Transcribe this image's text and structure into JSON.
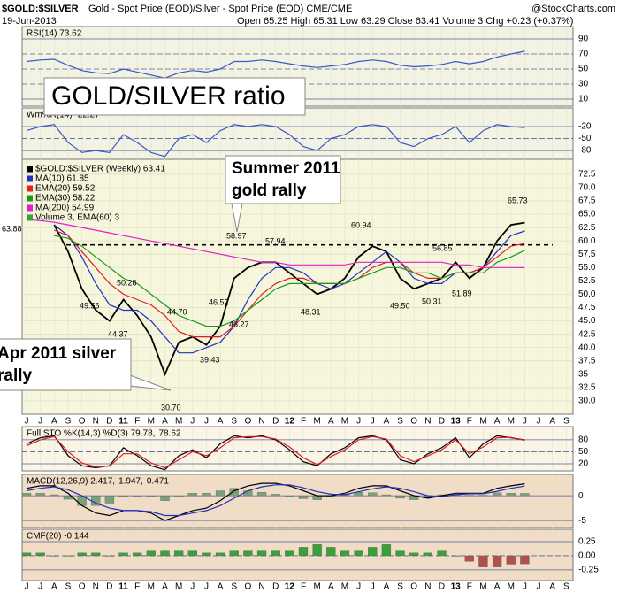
{
  "header": {
    "symbol": "$GOLD:$SILVER",
    "description": "Gold - Spot Price (EOD)/Silver - Spot Price (EOD)  CME/CME",
    "brand": "@StockCharts.com",
    "date": "19-Jun-2013",
    "quote": "Open 65.25  High 65.31  Low 63.29  Close 63.41  Volume 3  Chg +0.23 (+0.37%)"
  },
  "annotations": {
    "main": "GOLD/SILVER ratio",
    "summer": [
      "Summer 2011",
      "gold rally"
    ],
    "april": [
      "Apr 2011 silver",
      "rally"
    ]
  },
  "chart_data": [
    {
      "type": "line",
      "ylim": [
        0.6,
        106.5
      ],
      "yticks": [
        90,
        70,
        50,
        30,
        10
      ],
      "series": [
        {
          "name": "RSI(14) 73.62",
          "color": "#3a55c8",
          "values": [
            60,
            62,
            63,
            55,
            48,
            45,
            44,
            50,
            46,
            42,
            38,
            45,
            48,
            46,
            50,
            60,
            60,
            62,
            60,
            57,
            54,
            52,
            54,
            56,
            60,
            62,
            60,
            55,
            53,
            54,
            56,
            60,
            57,
            60,
            66,
            70,
            73.62,
            null,
            null,
            null
          ]
        }
      ]
    },
    {
      "type": "line",
      "ylim": [
        -102,
        26.7
      ],
      "yticks": [
        -20,
        -50,
        -80
      ],
      "series": [
        {
          "name": "Wm%R(14) -22.27",
          "color": "#3a55c8",
          "values": [
            -30,
            -20,
            -15,
            -60,
            -85,
            -80,
            -85,
            -40,
            -60,
            -85,
            -95,
            -50,
            -40,
            -60,
            -30,
            -15,
            -20,
            -15,
            -20,
            -40,
            -70,
            -80,
            -50,
            -40,
            -20,
            -15,
            -20,
            -60,
            -70,
            -50,
            -40,
            -20,
            -60,
            -30,
            -15,
            -20,
            -22.27,
            null,
            null,
            null
          ]
        }
      ]
    },
    {
      "type": "line",
      "categories": [
        "J",
        "J",
        "A",
        "S",
        "O",
        "N",
        "D",
        "11",
        "F",
        "M",
        "A",
        "M",
        "J",
        "J",
        "A",
        "S",
        "O",
        "N",
        "D",
        "12",
        "F",
        "M",
        "A",
        "M",
        "J",
        "J",
        "A",
        "S",
        "O",
        "N",
        "D",
        "13",
        "F",
        "M",
        "A",
        "M",
        "J",
        "J",
        "A",
        "S"
      ],
      "ylim": [
        27.5,
        75.3
      ],
      "yticks": [
        {
          "value": 30,
          "label": "30.0"
        },
        32.5,
        35,
        37.5,
        {
          "value": 40,
          "label": "40.0"
        },
        42.5,
        {
          "value": 45,
          "label": "45.0"
        },
        47.5,
        {
          "value": 50,
          "label": "50.0"
        },
        52.5,
        {
          "value": 55,
          "label": "55.0"
        },
        57.5,
        {
          "value": 60,
          "label": "60.0"
        },
        62.5,
        {
          "value": 65,
          "label": "65.0"
        },
        67.5,
        {
          "value": 70,
          "label": "70.0"
        },
        72.5
      ],
      "hline": 59.25,
      "series": [
        {
          "name": "$GOLD:$SILVER (Weekly) 63.41",
          "color": "#000000",
          "values": [
            null,
            null,
            63,
            58,
            51,
            47,
            45,
            49,
            46,
            42,
            35,
            41,
            42,
            40.5,
            44,
            53,
            55,
            56,
            56,
            54,
            52,
            50,
            51,
            53,
            57,
            59,
            58,
            53,
            51,
            52,
            53,
            56,
            53,
            55,
            60,
            63,
            63.41,
            null,
            null,
            null
          ]
        },
        {
          "name": "MA(10) 61.85",
          "color": "#2030c0",
          "values": [
            null,
            null,
            63,
            61,
            57,
            52,
            48,
            47,
            47,
            45,
            42,
            39,
            39,
            40,
            41,
            44,
            49,
            53,
            55,
            55,
            54,
            52,
            51,
            52,
            54,
            56,
            58,
            56,
            53,
            52,
            52,
            54,
            54,
            55,
            58,
            61,
            61.85,
            null,
            null,
            null
          ]
        },
        {
          "name": "EMA(20) 59.52",
          "color": "#e02020",
          "values": [
            null,
            null,
            62,
            61,
            58,
            55,
            52,
            50,
            49,
            48,
            46,
            43,
            42,
            42,
            42,
            44,
            47,
            50,
            52,
            53,
            53,
            52,
            52,
            52,
            53,
            55,
            56,
            56,
            54,
            53,
            53,
            54,
            54,
            55,
            57,
            59,
            59.52,
            null,
            null,
            null
          ]
        },
        {
          "name": "EMA(30) 58.22",
          "color": "#1a9a1a",
          "values": [
            null,
            null,
            61,
            60.5,
            59,
            57,
            55,
            53,
            52,
            50,
            48,
            46,
            45,
            44,
            44,
            45,
            47,
            49,
            51,
            52,
            52,
            52,
            52,
            52,
            53,
            54,
            55,
            55,
            54,
            54,
            53,
            54,
            54,
            54,
            56,
            57,
            58.22,
            null,
            null,
            null
          ]
        },
        {
          "name": "MA(200) 54.99",
          "color": "#e020c8",
          "values": [
            64,
            63.8,
            63.5,
            63,
            62.5,
            62,
            61.5,
            61,
            60.5,
            60,
            59.5,
            59,
            58.5,
            58,
            57.5,
            57,
            56.5,
            56,
            56,
            55.5,
            55.5,
            55.5,
            55.5,
            55.5,
            56,
            56,
            56,
            56,
            56,
            56,
            56,
            55.5,
            55.5,
            55,
            55,
            55,
            54.99,
            null,
            null,
            null
          ]
        }
      ],
      "volume_legend": "Volume 3, EMA(60) 3",
      "point_labels": [
        63.88,
        58.97,
        57.94,
        60.94,
        56.85,
        65.73,
        50.28,
        49.56,
        44.37,
        {
          "value": 44.7,
          "label": "44.70"
        },
        46.52,
        46.27,
        39.43,
        {
          "value": 30.7,
          "label": "30.70"
        },
        48.31,
        {
          "value": 49.5,
          "label": "49.50"
        },
        50.31,
        51.89
      ]
    },
    {
      "type": "line",
      "ylim": [
        2.2,
        113
      ],
      "yticks": [
        80,
        50,
        20
      ],
      "series": [
        {
          "name": "Full STO %K(14,3) %D(3) 79.78,",
          "color": "#000000",
          "values": [
            70,
            85,
            90,
            40,
            15,
            10,
            15,
            60,
            40,
            15,
            5,
            40,
            55,
            35,
            70,
            90,
            85,
            90,
            80,
            55,
            25,
            15,
            45,
            60,
            85,
            90,
            80,
            30,
            20,
            45,
            60,
            85,
            35,
            70,
            90,
            85,
            79.78,
            null,
            null,
            null
          ]
        },
        {
          "name": "78.62",
          "color": "#e02020",
          "values": [
            65,
            80,
            88,
            50,
            22,
            12,
            14,
            45,
            45,
            22,
            10,
            30,
            50,
            40,
            60,
            85,
            88,
            88,
            82,
            62,
            35,
            18,
            38,
            55,
            80,
            88,
            82,
            40,
            25,
            40,
            55,
            80,
            45,
            62,
            85,
            86,
            78.62,
            null,
            null,
            null
          ]
        }
      ]
    },
    {
      "type": "line",
      "ylim": [
        -6.4,
        4.3
      ],
      "yticks": [
        0,
        -5
      ],
      "series": [
        {
          "name": "0.471",
          "style": "bar",
          "color": "#7aa07a",
          "values": [
            0.5,
            0.5,
            0.2,
            -0.7,
            -2,
            -2,
            -1.5,
            0,
            0,
            -0.3,
            -1,
            0,
            0.5,
            0.5,
            1,
            1.5,
            1,
            0.7,
            0.3,
            -0.2,
            -0.6,
            -0.8,
            -0.3,
            0.3,
            0.7,
            0.6,
            0.2,
            -0.5,
            -0.8,
            -0.5,
            0.2,
            0.3,
            0.1,
            0.1,
            0.6,
            0.5,
            0.471,
            null,
            null,
            null
          ]
        },
        {
          "name": "MACD(12,26,9) 2.417,",
          "color": "#000000",
          "values": [
            1.5,
            2,
            2,
            0.5,
            -2,
            -3.5,
            -4,
            -3,
            -3,
            -3.5,
            -5,
            -4,
            -3,
            -2.5,
            -1,
            1,
            2,
            2.5,
            2.5,
            2,
            1,
            0,
            0,
            0.5,
            1.5,
            2,
            2,
            1,
            0,
            -0.5,
            0,
            0.5,
            0.5,
            0.5,
            1.5,
            2,
            2.417,
            null,
            null,
            null
          ]
        },
        {
          "name": "1.947,",
          "color": "#2030c0",
          "values": [
            1,
            1.5,
            1.8,
            1.2,
            0,
            -1.5,
            -2.5,
            -3,
            -3,
            -3.2,
            -4,
            -4,
            -3.5,
            -3,
            -2,
            -0.5,
            1,
            1.8,
            2.2,
            2.2,
            1.6,
            0.8,
            0.3,
            0.2,
            0.8,
            1.4,
            1.8,
            1.5,
            0.8,
            0,
            -0.2,
            0.2,
            0.4,
            0.4,
            0.9,
            1.5,
            1.947,
            null,
            null,
            null
          ]
        }
      ]
    },
    {
      "type": "bar",
      "categories": [
        "J",
        "J",
        "A",
        "S",
        "O",
        "N",
        "D",
        "11",
        "F",
        "M",
        "A",
        "M",
        "J",
        "J",
        "A",
        "S",
        "O",
        "N",
        "D",
        "12",
        "F",
        "M",
        "A",
        "M",
        "J",
        "J",
        "A",
        "S",
        "O",
        "N",
        "D",
        "13",
        "F",
        "M",
        "A",
        "M",
        "J",
        "J",
        "A",
        "S"
      ],
      "ylim": [
        -0.44,
        0.47
      ],
      "yticks": [
        0.25,
        {
          "value": 0,
          "label": "0.00"
        },
        -0.25
      ],
      "series": [
        {
          "name": "CMF(20) -0.144",
          "style": "bar",
          "color": "#3aa03a",
          "negative_color": "#b05050",
          "values": [
            0.05,
            0.05,
            0,
            0,
            0.05,
            0.05,
            0,
            0.05,
            0.05,
            0.1,
            0.1,
            0.1,
            0.1,
            0.05,
            0.05,
            0.1,
            0.1,
            0.1,
            0.1,
            0.1,
            0.15,
            0.2,
            0.15,
            0.1,
            0.1,
            0.15,
            0.2,
            0.1,
            0.05,
            0.05,
            0.1,
            0,
            -0.1,
            -0.2,
            -0.2,
            -0.15,
            -0.144,
            null,
            null,
            null
          ]
        }
      ]
    }
  ]
}
